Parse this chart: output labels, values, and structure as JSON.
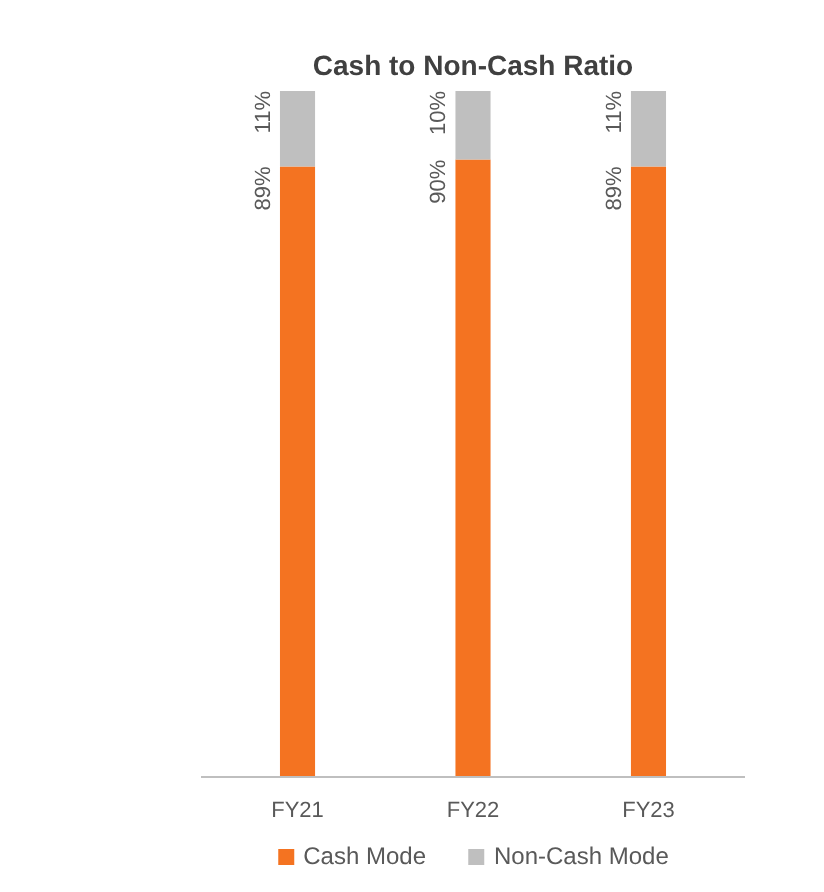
{
  "chart_data": {
    "type": "bar",
    "title": "Cash to Non-Cash Ratio",
    "categories": [
      "FY21",
      "FY22",
      "FY23"
    ],
    "stacked": true,
    "legend": "bottom",
    "series": [
      {
        "name": "Cash Mode",
        "color": "#f47321",
        "values": [
          89,
          90,
          89
        ],
        "value_labels": [
          "89%",
          "90%",
          "89%"
        ]
      },
      {
        "name": "Non-Cash Mode",
        "color": "#bfbfbf",
        "values": [
          11,
          10,
          11
        ],
        "value_labels": [
          "11%",
          "10%",
          "11%"
        ]
      }
    ]
  }
}
